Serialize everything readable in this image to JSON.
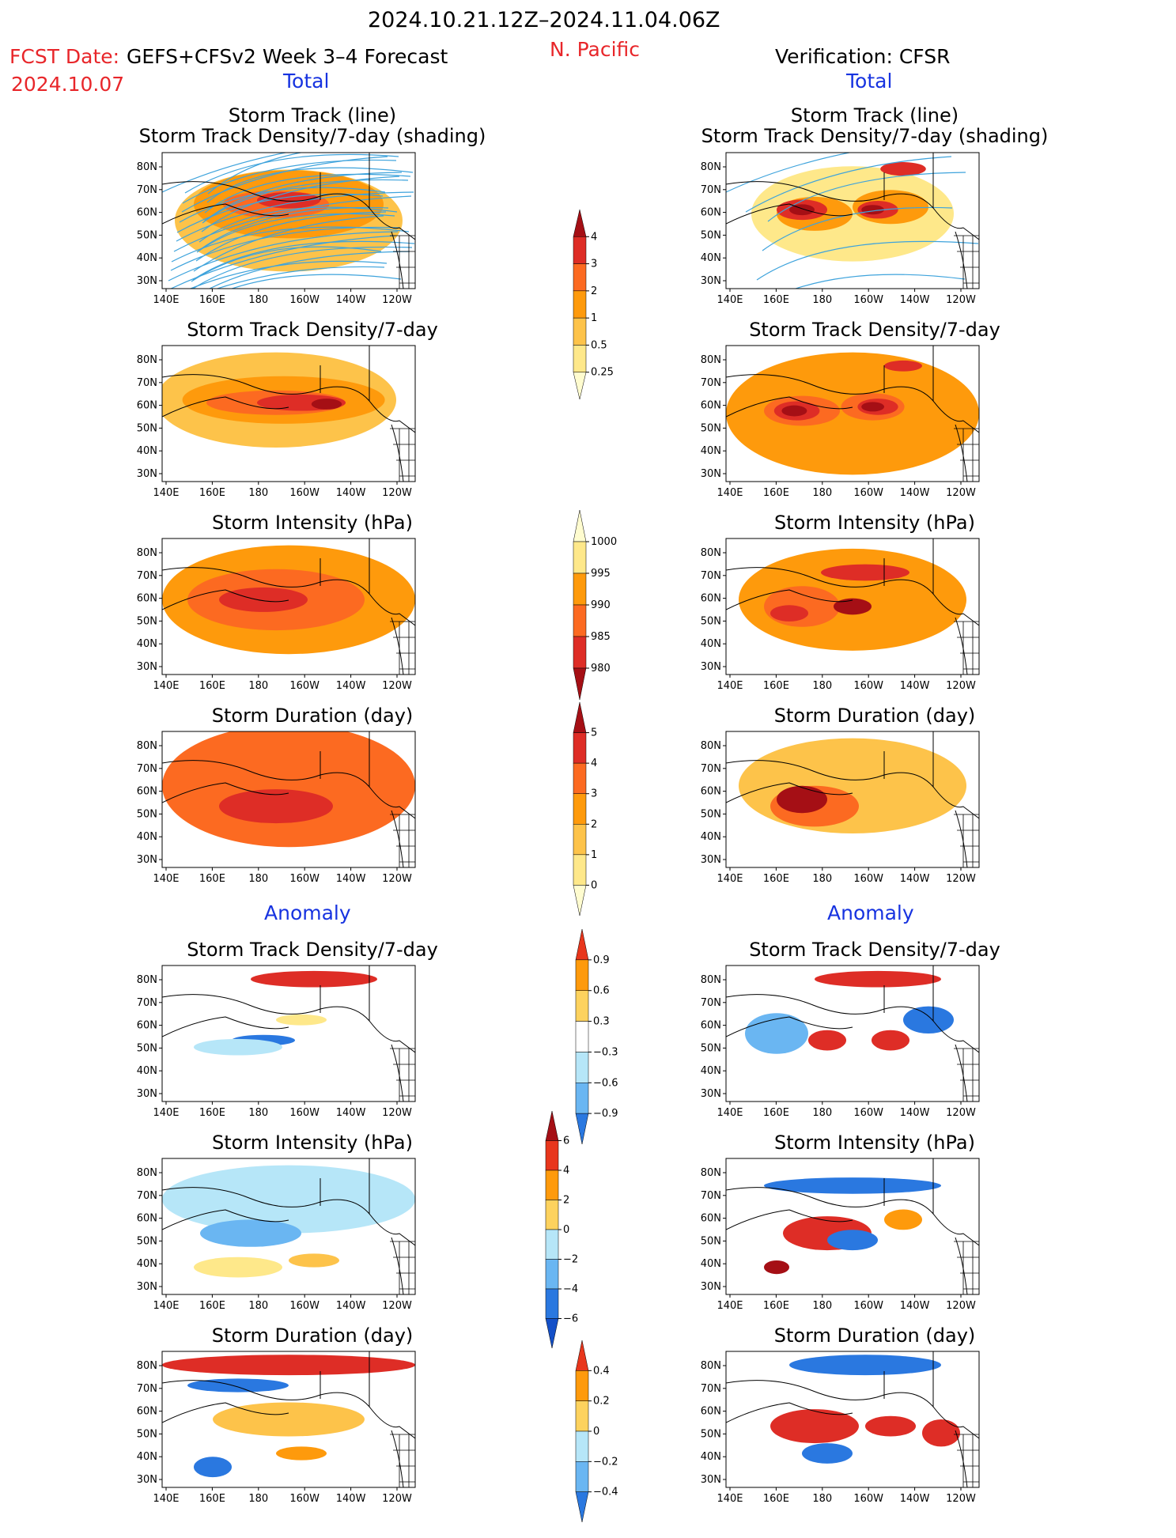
{
  "header": {
    "period": "2024.10.21.12Z–2024.11.04.06Z",
    "fcst_label": "FCST Date:",
    "fcst_model": "GEFS+CFSv2 Week 3–4 Forecast",
    "fcst_date": "2024.10.07",
    "region": "N. Pacific",
    "verification": "Verification: CFSR"
  },
  "sections": {
    "total_left": "Total",
    "total_right": "Total",
    "anomaly_left": "Anomaly",
    "anomaly_right": "Anomaly"
  },
  "panels": [
    {
      "id": "track-fcst",
      "title1": "Storm Track (line)",
      "title2": "Storm Track Density/7-day (shading)"
    },
    {
      "id": "track-obs",
      "title1": "Storm Track (line)",
      "title2": "Storm Track Density/7-day (shading)"
    },
    {
      "id": "density-fcst",
      "title": "Storm Track Density/7-day"
    },
    {
      "id": "density-obs",
      "title": "Storm Track Density/7-day"
    },
    {
      "id": "intensity-fcst",
      "title": "Storm Intensity (hPa)"
    },
    {
      "id": "intensity-obs",
      "title": "Storm Intensity (hPa)"
    },
    {
      "id": "duration-fcst",
      "title": "Storm Duration (day)"
    },
    {
      "id": "duration-obs",
      "title": "Storm Duration (day)"
    },
    {
      "id": "a-density-fcst",
      "title": "Storm Track Density/7-day"
    },
    {
      "id": "a-density-obs",
      "title": "Storm Track Density/7-day"
    },
    {
      "id": "a-intensity-fcst",
      "title": "Storm Intensity (hPa)"
    },
    {
      "id": "a-intensity-obs",
      "title": "Storm Intensity (hPa)"
    },
    {
      "id": "a-duration-fcst",
      "title": "Storm Duration (day)"
    },
    {
      "id": "a-duration-obs",
      "title": "Storm Duration (day)"
    }
  ],
  "axes": {
    "lat_ticks": [
      "80N",
      "70N",
      "60N",
      "50N",
      "40N",
      "30N"
    ],
    "lon_ticks": [
      "140E",
      "160E",
      "180",
      "160W",
      "140W",
      "120W"
    ]
  },
  "colorbars": [
    {
      "id": "cb-density",
      "labels": [
        "4",
        "3",
        "2",
        "1",
        "0.5",
        "0.25"
      ],
      "colors": [
        "#a50f15",
        "#de2d26",
        "#fc6a21",
        "#fe9a0c",
        "#fdc34a",
        "#fee88a",
        "#fffccf"
      ]
    },
    {
      "id": "cb-intensity",
      "labels": [
        "1000",
        "995",
        "990",
        "985",
        "980"
      ],
      "colors": [
        "#fffccf",
        "#fee88a",
        "#fe9a0c",
        "#fc6a21",
        "#de2d26",
        "#a50f15"
      ]
    },
    {
      "id": "cb-duration",
      "labels": [
        "5",
        "4",
        "3",
        "2",
        "1",
        "0"
      ],
      "colors": [
        "#a50f15",
        "#de2d26",
        "#fc6a21",
        "#fe9a0c",
        "#fdc34a",
        "#fee88a",
        "#fffccf"
      ]
    },
    {
      "id": "cb-a-density",
      "labels": [
        "0.9",
        "0.6",
        "0.3",
        "−0.3",
        "−0.6",
        "−0.9"
      ],
      "colors": [
        "#e8361c",
        "#fe9a0c",
        "#fdd25e",
        "#ffffff",
        "#b6e6f8",
        "#6ab6f2",
        "#2a78e0"
      ]
    },
    {
      "id": "cb-a-intensity",
      "labels": [
        "6",
        "4",
        "2",
        "0",
        "−2",
        "−4",
        "−6"
      ],
      "colors": [
        "#a50f15",
        "#e8361c",
        "#fe9a0c",
        "#fdd25e",
        "#b6e6f8",
        "#6ab6f2",
        "#2a78e0",
        "#1450c8"
      ]
    },
    {
      "id": "cb-a-duration",
      "labels": [
        "0.4",
        "0.2",
        "0",
        "−0.2",
        "−0.4"
      ],
      "colors": [
        "#e8361c",
        "#fe9a0c",
        "#fdd25e",
        "#b6e6f8",
        "#6ab6f2",
        "#2a78e0"
      ]
    }
  ],
  "palette": {
    "c1": "#fee88a",
    "c2": "#fdc34a",
    "c3": "#fe9a0c",
    "c4": "#fc6a21",
    "c5": "#de2d26",
    "c6": "#a50f15",
    "b1": "#b6e6f8",
    "b2": "#6ab6f2",
    "b3": "#2a78e0",
    "track_line": "#3ea3dc"
  }
}
